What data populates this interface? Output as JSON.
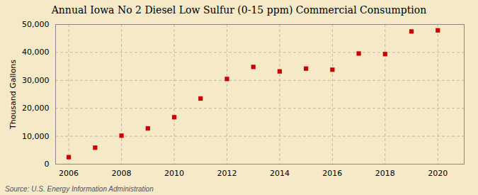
{
  "chart_data": {
    "type": "scatter",
    "title": "Annual Iowa No 2 Diesel Low Sulfur (0-15 ppm) Commercial Consumption",
    "ylabel": "Thousand Gallons",
    "source": "Source: U.S. Energy Information Administration",
    "x": [
      2006,
      2007,
      2008,
      2009,
      2010,
      2011,
      2012,
      2013,
      2014,
      2015,
      2016,
      2017,
      2018,
      2019,
      2020
    ],
    "values": [
      2500,
      5900,
      10200,
      12800,
      16800,
      23500,
      30500,
      34800,
      33200,
      34200,
      33800,
      39600,
      39400,
      47500,
      47900
    ],
    "color": "#cc0000",
    "marker": "square",
    "xlim": [
      2005.5,
      2021.0
    ],
    "ylim": [
      0,
      50000
    ],
    "xticks": [
      2006,
      2008,
      2010,
      2012,
      2014,
      2016,
      2018,
      2020
    ],
    "yticks": [
      0,
      {
        "value": 10000,
        "label": "10,000"
      },
      {
        "value": 20000,
        "label": "20,000"
      },
      {
        "value": 30000,
        "label": "30,000"
      },
      {
        "value": 40000,
        "label": "40,000"
      },
      {
        "value": 50000,
        "label": "50,000"
      }
    ],
    "grid": true
  }
}
